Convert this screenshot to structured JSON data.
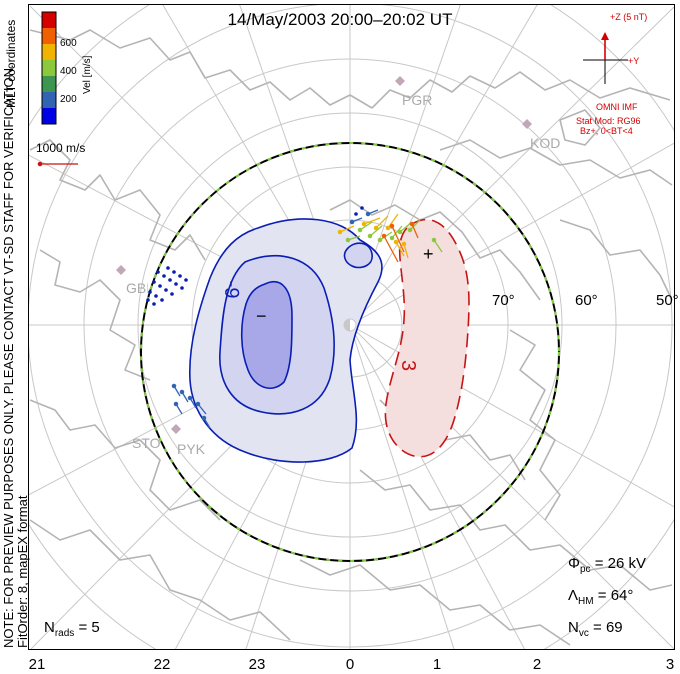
{
  "title": "14/May/2003 20:00–20:02 UT",
  "notes": {
    "line1": "NOTE: FOR PREVIEW PURPOSES ONLY. PLEASE CONTACT VT-SD STAFF FOR VERIFICATION.",
    "line2": "FitOrder: 8, mapEX format",
    "coords": "MLT coordinates"
  },
  "legend": {
    "label": "Vel [m/s]",
    "ticks": [
      "600",
      "400",
      "200"
    ],
    "colors": [
      "#d40000",
      "#f06000",
      "#f0b400",
      "#8cc83c",
      "#3c9650",
      "#3264b4",
      "#0000e6"
    ]
  },
  "scale": {
    "label": "1000 m/s"
  },
  "mlt_ticks": [
    "21",
    "22",
    "23",
    "0",
    "1",
    "2",
    "3"
  ],
  "lat_labels": [
    "70°",
    "60°",
    "50°"
  ],
  "stations": [
    "PGR",
    "KOD",
    "GBR",
    "STO",
    "PYK"
  ],
  "contours": {
    "negative_label": "-9",
    "positive_label": "3",
    "min_marker": "−",
    "max_marker": "+"
  },
  "imf": {
    "z_label": "+Z (5 nT)",
    "y_label": "+Y",
    "source": "OMNI IMF",
    "model": "Stat Mod: RG96",
    "condition": "Bz+, 0<BT<4"
  },
  "stats": {
    "phi_symbol": "Φ",
    "phi_sub": "pc",
    "phi_value": " = 26 kV",
    "lambda_symbol": "Λ",
    "lambda_sub": "HM",
    "lambda_value": " = 64°",
    "nvc_symbol": "N",
    "nvc_sub": "vc",
    "nvc_value": " = 69",
    "nrads_symbol": "N",
    "nrads_sub": "rads",
    "nrads_value": " = 5"
  },
  "colors": {
    "negative_contour": "#0a1eb4",
    "positive_contour": "#c81414",
    "negative_fill": "#e2e4f2",
    "negative_core": "#a8a8e8",
    "positive_fill": "#f4dede",
    "grid": "#c8c8c8",
    "coast": "#b4b4b4",
    "boundary_dash": "#80cc3c"
  }
}
